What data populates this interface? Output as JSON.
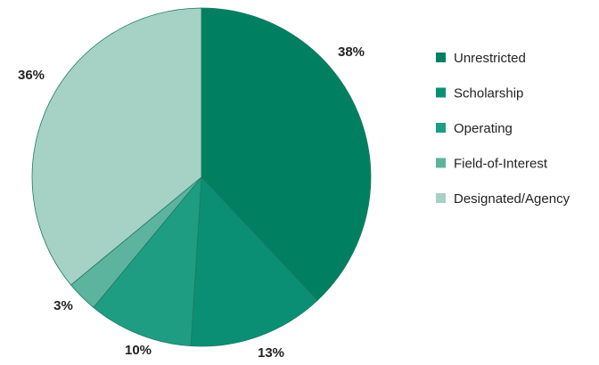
{
  "chart_data": {
    "type": "pie",
    "start_angle_deg": 0,
    "direction": "clockwise",
    "legend_position": "right",
    "slices": [
      {
        "label": "Unrestricted",
        "value": 38,
        "display": "38%",
        "color": "#008060"
      },
      {
        "label": "Scholarship",
        "value": 13,
        "display": "13%",
        "color": "#0a8f74"
      },
      {
        "label": "Operating",
        "value": 10,
        "display": "10%",
        "color": "#1e9d82"
      },
      {
        "label": "Field-of-Interest",
        "value": 3,
        "display": "3%",
        "color": "#5cb39e"
      },
      {
        "label": "Designated/Agency",
        "value": 36,
        "display": "36%",
        "color": "#a6d1c5"
      }
    ]
  }
}
